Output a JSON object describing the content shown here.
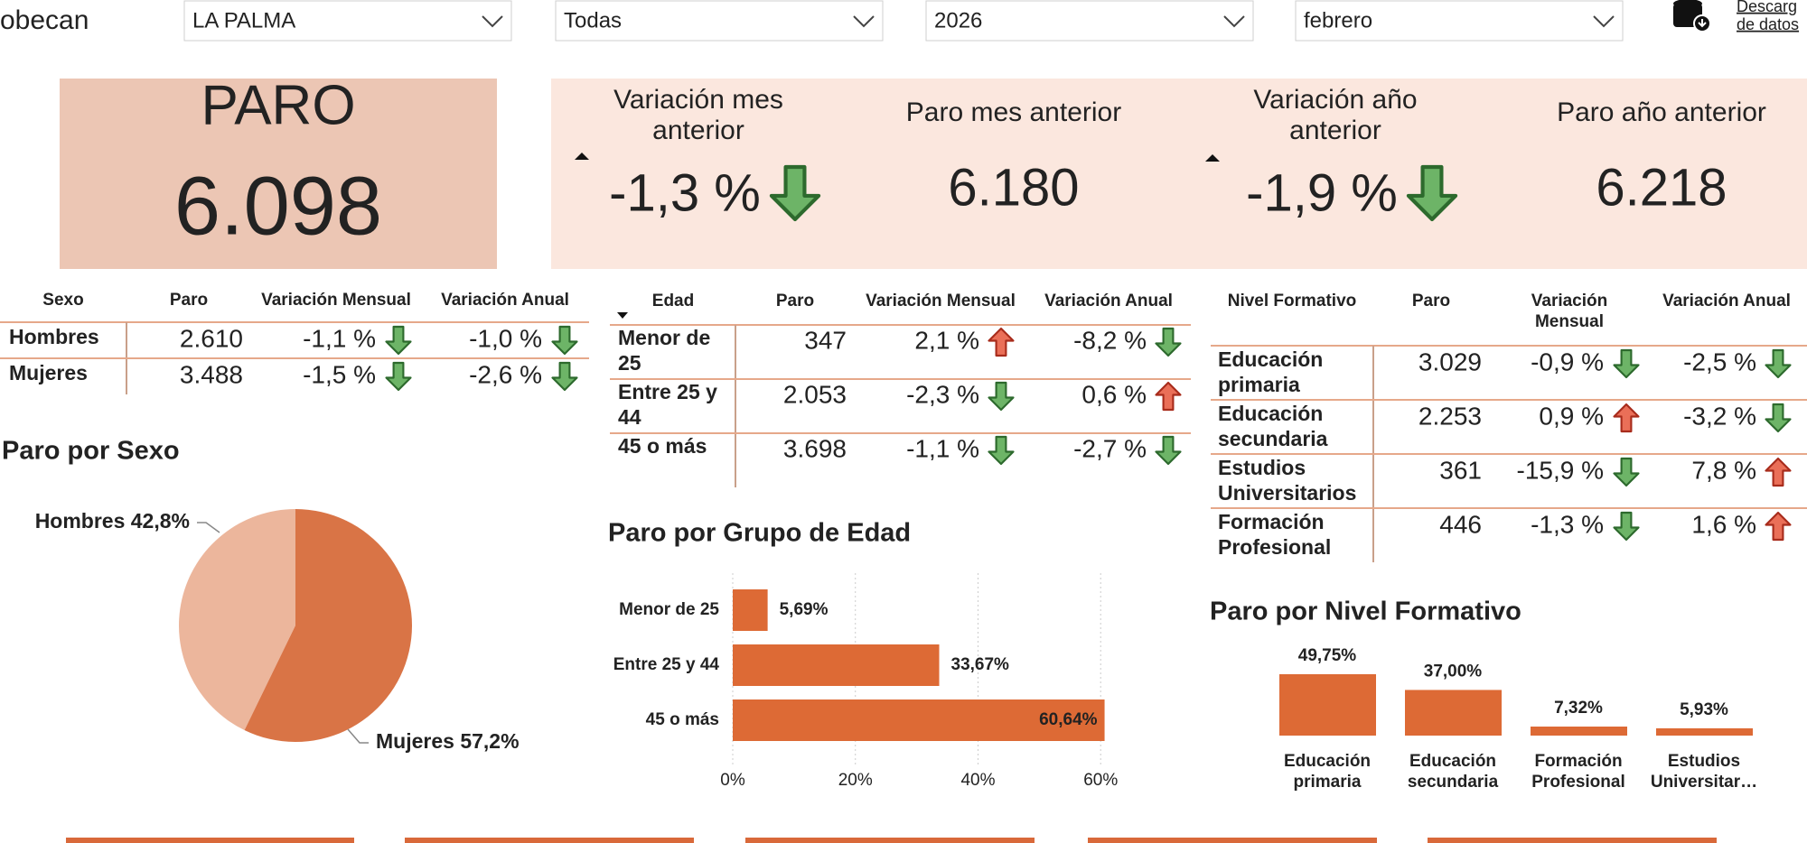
{
  "header": {
    "logo": "obecan",
    "filters": [
      "LA PALMA",
      "Todas",
      "2026",
      "febrero"
    ],
    "download": [
      "Descarg",
      "de datos"
    ]
  },
  "kpi": {
    "main_label": "PARO",
    "main_value": "6.098",
    "items": [
      {
        "label": [
          "Variación mes",
          "anterior"
        ],
        "value": "-1,3 %"
      },
      {
        "label": [
          "Paro mes anterior"
        ],
        "value": "6.180"
      },
      {
        "label": [
          "Variación año",
          "anterior"
        ],
        "value": "-1,9 %"
      },
      {
        "label": [
          "Paro año anterior"
        ],
        "value": "6.218"
      }
    ]
  },
  "tables": [
    {
      "header": [
        "Sexo",
        "Paro",
        "Variación Mensual",
        "Variación Anual"
      ],
      "rows": [
        [
          "Hombres",
          "2.610",
          "-1,1 %",
          "-1,0 %"
        ],
        [
          "Mujeres",
          "3.488",
          "-1,5 %",
          "-2,6 %"
        ]
      ]
    },
    {
      "header": [
        "Edad",
        "Paro",
        "Variación Mensual",
        "Variación Anual"
      ],
      "rows": [
        [
          [
            "Menor de",
            "25"
          ],
          "347",
          "2,1 %",
          "-8,2 %"
        ],
        [
          [
            "Entre 25 y",
            "44"
          ],
          "2.053",
          "-2,3 %",
          "0,6 %"
        ],
        [
          [
            "45 o más"
          ],
          "3.698",
          "-1,1 %",
          "-2,7 %"
        ]
      ]
    },
    {
      "header": [
        "Nivel Formativo",
        "Paro",
        [
          "Variación",
          "Mensual"
        ],
        "Variación Anual"
      ],
      "rows": [
        [
          [
            "Educación",
            "primaria"
          ],
          "3.029",
          "-0,9 %",
          "-2,5 %"
        ],
        [
          [
            "Educación",
            "secundaria"
          ],
          "2.253",
          "0,9 %",
          "-3,2 %"
        ],
        [
          [
            "Estudios",
            "Universitarios"
          ],
          "361",
          "-15,9 %",
          "7,8 %"
        ],
        [
          [
            "Formación",
            "Profesional"
          ],
          "446",
          "-1,3 %",
          "1,6 %"
        ]
      ]
    }
  ],
  "chart_data": [
    {
      "type": "pie",
      "title": "Paro por Sexo",
      "values": [
        42.8,
        57.2
      ],
      "value_labels": [
        "Hombres 42,8%",
        "Mujeres 57,2%"
      ],
      "colors": [
        "#ecb69c",
        "#d97446"
      ]
    },
    {
      "type": "hbar",
      "title": "Paro por Grupo de Edad",
      "categories": [
        "Menor de 25",
        "Entre 25 y 44",
        "45 o más"
      ],
      "values": [
        5.69,
        33.67,
        60.64
      ],
      "value_labels": [
        "5,69%",
        "33,67%",
        "60,64%"
      ],
      "color": "#dd6a35",
      "xlim": [
        0,
        61
      ],
      "xticks": [
        {
          "value": 0,
          "label": "0%"
        },
        {
          "value": 20,
          "label": "20%"
        },
        {
          "value": 40,
          "label": "40%"
        },
        {
          "value": 60,
          "label": "60%"
        }
      ],
      "grid": true
    },
    {
      "type": "vbar",
      "title": "Paro por Nivel Formativo",
      "categories": [
        "Educación primaria",
        "Educación secundaria",
        "Formación Profesional",
        "Estudios Universitar…"
      ],
      "values": [
        49.75,
        37.0,
        7.32,
        5.93
      ],
      "value_labels": [
        "49,75%",
        "37,00%",
        "7,32%",
        "5,93%"
      ],
      "color": "#dd6a35"
    }
  ]
}
